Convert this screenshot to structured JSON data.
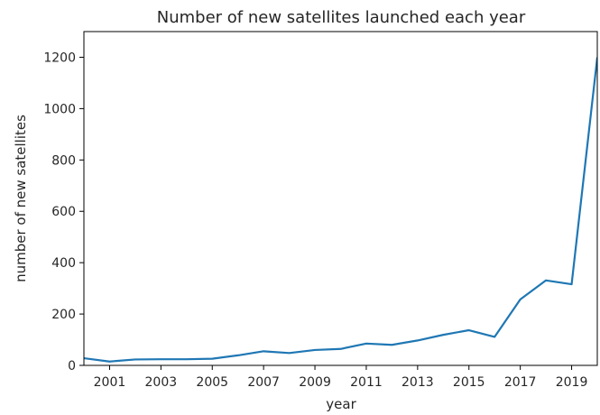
{
  "chart_data": {
    "type": "line",
    "title": "Number of new satellites launched each year",
    "xlabel": "year",
    "ylabel": "number of new satellites",
    "xlim": [
      2000,
      2020
    ],
    "ylim": [
      0,
      1300
    ],
    "x_ticks": [
      2001,
      2003,
      2005,
      2007,
      2009,
      2011,
      2013,
      2015,
      2017,
      2019
    ],
    "y_ticks": [
      0,
      200,
      400,
      600,
      800,
      1000,
      1200
    ],
    "grid": false,
    "legend": "none",
    "series": [
      {
        "color": "#1f77b4",
        "x": [
          2000,
          2001,
          2002,
          2003,
          2004,
          2005,
          2006,
          2007,
          2008,
          2009,
          2010,
          2011,
          2012,
          2013,
          2014,
          2015,
          2016,
          2017,
          2018,
          2019,
          2020
        ],
        "y": [
          28,
          15,
          23,
          24,
          24,
          26,
          39,
          55,
          48,
          60,
          64,
          85,
          80,
          97,
          119,
          137,
          111,
          257,
          331,
          316,
          1200
        ]
      }
    ]
  }
}
